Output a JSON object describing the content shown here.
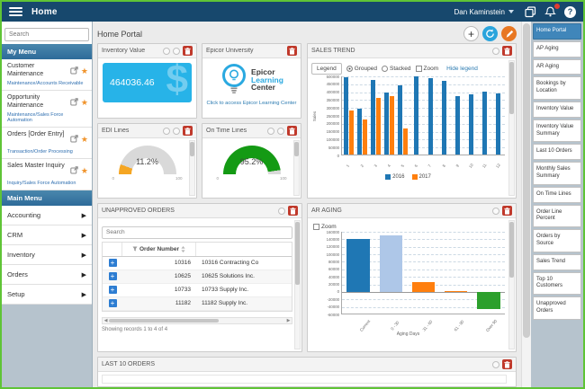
{
  "topbar": {
    "title": "Home",
    "user_name": "Dan Kaminstein"
  },
  "left_sidebar": {
    "search_placeholder": "Search",
    "my_menu_title": "My Menu",
    "my_menu_items": [
      {
        "label": "Customer Maintenance",
        "category": "Maintenance/Accounts Receivable"
      },
      {
        "label": "Opportunity Maintenance",
        "category": "Maintenance/Sales Force Automation"
      },
      {
        "label": "Orders [Order Entry]",
        "category": "Transaction/Order Processing"
      },
      {
        "label": "Sales Master Inquiry",
        "category": "Inquiry/Sales Force Automation"
      }
    ],
    "main_menu_title": "Main Menu",
    "main_menu_items": [
      "Accounting",
      "CRM",
      "Inventory",
      "Orders",
      "Setup"
    ]
  },
  "content": {
    "page_title": "Home Portal",
    "inventory_value": {
      "title": "Inventory Value",
      "value": "464036.46",
      "watermark": "$"
    },
    "epicor_university": {
      "title": "Epicor University",
      "logo_words": [
        "Epicor",
        "Learning",
        "Center"
      ],
      "link_text": "Click to access Epicor Learning Center"
    },
    "edi_lines": {
      "title": "EDI Lines",
      "value": "11.2%",
      "min_label": "0",
      "max_label": "100"
    },
    "on_time_lines": {
      "title": "On Time Lines",
      "value": "95.2%",
      "min_label": "0",
      "max_label": "100"
    },
    "sales_trend": {
      "title": "SALES TREND",
      "legend_button": "Legend",
      "grouped_label": "Grouped",
      "stacked_label": "Stacked",
      "zoom_label": "Zoom",
      "hide_legend_label": "Hide legend"
    },
    "unapproved_orders": {
      "title": "UNAPPROVED ORDERS",
      "search_placeholder": "Search",
      "order_number_column": "Order Number",
      "rows": [
        {
          "order_number": "10316",
          "customer": "10316 Contracting Co"
        },
        {
          "order_number": "10625",
          "customer": "10625 Solutions Inc."
        },
        {
          "order_number": "10733",
          "customer": "10733 Supply Inc."
        },
        {
          "order_number": "11182",
          "customer": "11182 Supply Inc."
        }
      ],
      "footer": "Showing records 1 to 4 of 4"
    },
    "ar_aging": {
      "title": "AR AGING",
      "zoom_label": "Zoom"
    },
    "last_10_orders": {
      "title": "LAST 10 ORDERS"
    }
  },
  "right_sidebar": {
    "selected_index": 0,
    "items": [
      "Home Portal",
      "AP Aging",
      "AR Aging",
      "Bookings by Location",
      "Inventory Value",
      "Inventory Value Summary",
      "Last 10 Orders",
      "Monthly Sales Summary",
      "On Time Lines",
      "Order Line Percent",
      "Orders by Source",
      "Sales Trend",
      "Top 10 Customers",
      "Unapproved Orders"
    ]
  },
  "chart_data": [
    {
      "id": "sales_trend",
      "type": "bar",
      "title": "SALES TREND",
      "ylabel": "Sales",
      "ylim": [
        0,
        500000
      ],
      "ytick_step": 50000,
      "grid": true,
      "legend_position": "bottom",
      "categories": [
        "1",
        "2",
        "3",
        "4",
        "5",
        "6",
        "7",
        "8",
        "9",
        "10",
        "11",
        "12"
      ],
      "series": [
        {
          "name": "2016",
          "color": "#1f77b4",
          "values": [
            490000,
            290000,
            470000,
            390000,
            440000,
            495000,
            485000,
            465000,
            370000,
            380000,
            400000,
            385000
          ]
        },
        {
          "name": "2017",
          "color": "#ff7f0e",
          "values": [
            280000,
            220000,
            360000,
            370000,
            165000,
            null,
            null,
            null,
            null,
            null,
            null,
            null
          ]
        }
      ]
    },
    {
      "id": "ar_aging",
      "type": "bar",
      "title": "AR AGING",
      "xlabel": "Aging Days",
      "ylim": [
        -60000,
        160000
      ],
      "ytick_step": 20000,
      "grid": true,
      "categories": [
        "Current",
        "0 - 30",
        "31 - 60",
        "61 - 90",
        "Over 90"
      ],
      "values": [
        140000,
        150000,
        25000,
        2000,
        -45000
      ],
      "colors": [
        "#1f77b4",
        "#aec7e8",
        "#ff7f0e",
        "#ff7f0e",
        "#2ca02c"
      ]
    },
    {
      "id": "edi_lines",
      "type": "gauge",
      "title": "EDI Lines",
      "value": 11.2,
      "min": 0,
      "max": 100,
      "color": "#f5a623",
      "track_color": "#d9d9d9"
    },
    {
      "id": "on_time_lines",
      "type": "gauge",
      "title": "On Time Lines",
      "value": 95.2,
      "min": 0,
      "max": 100,
      "color": "#149a14",
      "track_color": "#d9d9d9"
    }
  ]
}
